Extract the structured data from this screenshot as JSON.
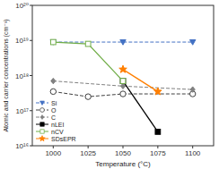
{
  "chart_data": {
    "type": "line",
    "xlabel": "Temperature (°C)",
    "ylabel": "Atomic and carrier concentrations (cm⁻³)",
    "log": "y",
    "grid": false,
    "legend": "lower left",
    "xlim": [
      985,
      1115
    ],
    "ylim": [
      1e+16,
      1e+20
    ],
    "xticks": [
      1000,
      1025,
      1050,
      1075,
      1100
    ],
    "yticks": [
      {
        "value": 1e+16,
        "label": "10¹⁶"
      },
      {
        "value": 1e+17,
        "label": "10¹⁷"
      },
      {
        "value": 1e+18,
        "label": "10¹⁸"
      },
      {
        "value": 1e+19,
        "label": "10¹⁹"
      },
      {
        "value": 1e+20,
        "label": "10²⁰"
      }
    ],
    "series": [
      {
        "name": "Si",
        "color": "#4472C4",
        "marker": "triangle-down",
        "line_style": "dashed",
        "x": [
          1000,
          1050,
          1100
        ],
        "values": [
          9e+18,
          9e+18,
          9e+18
        ]
      },
      {
        "name": "O",
        "color": "#404040",
        "marker": "circle-open",
        "line_style": "dashed",
        "x": [
          1000,
          1025,
          1050,
          1100
        ],
        "values": [
          3.5e+17,
          2.5e+17,
          3e+17,
          3e+17
        ]
      },
      {
        "name": "C",
        "color": "#808080",
        "marker": "diamond",
        "line_style": "dashed",
        "x": [
          1000,
          1050,
          1100
        ],
        "values": [
          7e+17,
          5e+17,
          4e+17
        ]
      },
      {
        "name": "nLEI",
        "color": "#000000",
        "marker": "square",
        "line_style": "solid",
        "x": [
          1050,
          1075
        ],
        "values": [
          7e+17,
          2.5e+16
        ]
      },
      {
        "name": "nCV",
        "color": "#70AD47",
        "marker": "square-open",
        "line_style": "solid",
        "x": [
          1000,
          1025,
          1050
        ],
        "values": [
          9e+18,
          8e+18,
          7e+17
        ]
      },
      {
        "name": "SDsEPR",
        "color": "#FF7F00",
        "marker": "star",
        "line_style": "solid",
        "x": [
          1050,
          1075
        ],
        "values": [
          1.5e+18,
          3.5e+17
        ]
      }
    ]
  }
}
